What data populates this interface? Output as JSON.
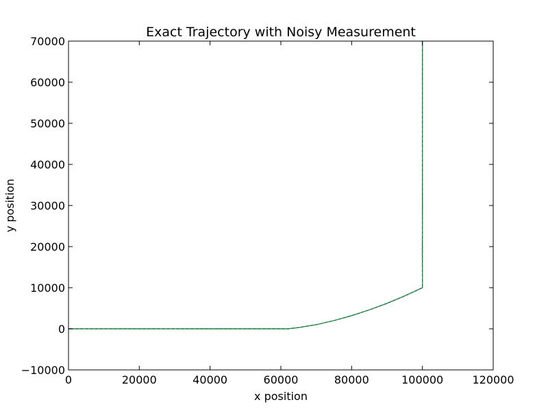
{
  "chart_data": {
    "type": "line",
    "title": "Exact Trajectory with Noisy Measurement",
    "xlabel": "x position",
    "ylabel": "y position",
    "xlim": [
      0,
      120000
    ],
    "ylim": [
      -10000,
      70000
    ],
    "xticks": [
      0,
      20000,
      40000,
      60000,
      80000,
      100000,
      120000
    ],
    "yticks": [
      -10000,
      0,
      10000,
      20000,
      30000,
      40000,
      50000,
      60000,
      70000
    ],
    "xtick_labels": [
      "0",
      "20000",
      "40000",
      "60000",
      "80000",
      "100000",
      "120000"
    ],
    "ytick_labels": [
      "−10000",
      "0",
      "10000",
      "20000",
      "30000",
      "40000",
      "50000",
      "60000",
      "70000"
    ],
    "grid": false,
    "series": [
      {
        "color": "#1a6a1a",
        "style": "solid",
        "x": [
          0,
          20000,
          40000,
          62000,
          65000,
          70000,
          75000,
          80000,
          85000,
          90000,
          95000,
          100000,
          100000,
          100000
        ],
        "y": [
          0,
          0,
          0,
          0,
          300,
          1000,
          2000,
          3200,
          4600,
          6200,
          8000,
          10000,
          40000,
          70000
        ]
      },
      {
        "color": "#2fa080",
        "style": "dashed",
        "x": [
          0,
          20000,
          40000,
          62000,
          65000,
          70000,
          75000,
          80000,
          85000,
          90000,
          95000,
          100000,
          99900,
          100100,
          99950,
          100050,
          100000
        ],
        "y": [
          20,
          -30,
          40,
          10,
          320,
          980,
          2030,
          3170,
          4640,
          6160,
          8040,
          9980,
          20000,
          30000,
          45000,
          60000,
          70000
        ]
      }
    ]
  }
}
